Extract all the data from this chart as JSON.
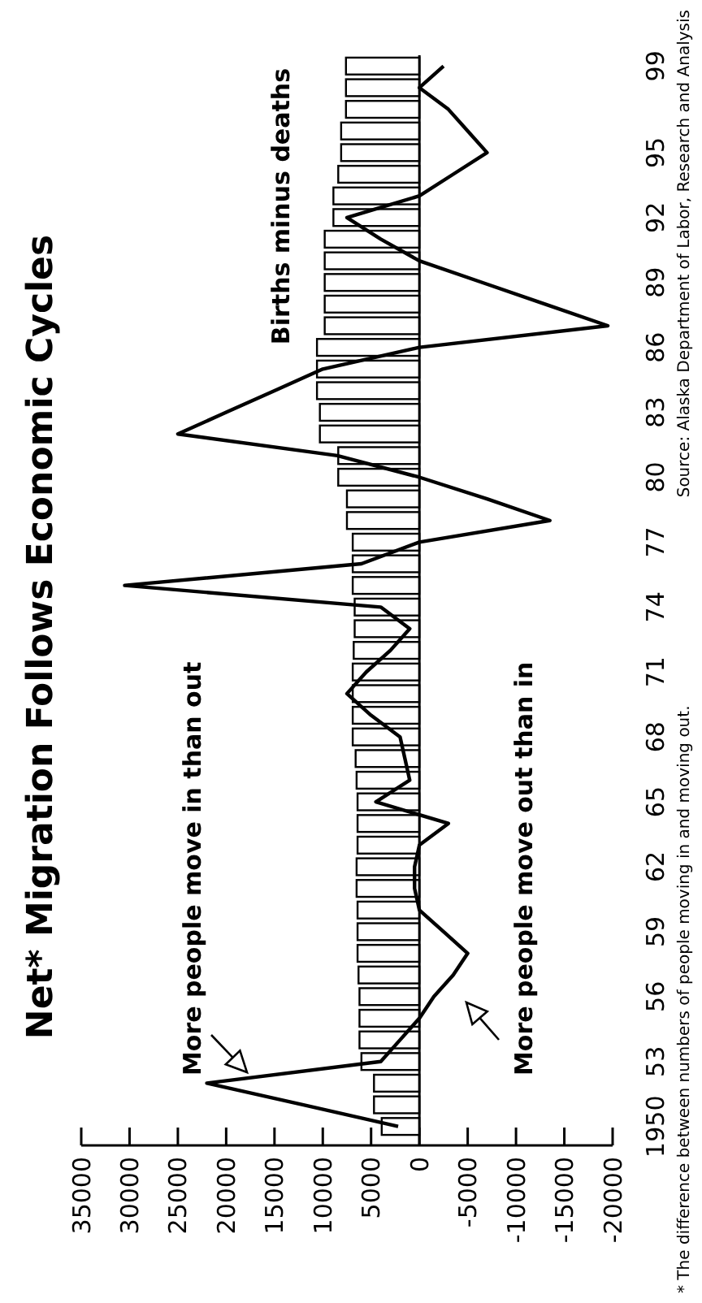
{
  "chart_data": {
    "type": "bar",
    "orientation": "horizontal",
    "title": "Net* Migration Follows Economic Cycles",
    "categories": [
      "99",
      null,
      null,
      null,
      "95",
      null,
      null,
      "92",
      null,
      null,
      "89",
      null,
      null,
      "86",
      null,
      null,
      "83",
      null,
      null,
      "80",
      null,
      null,
      "77",
      null,
      null,
      "74",
      null,
      null,
      "71",
      null,
      null,
      "68",
      null,
      null,
      "65",
      null,
      null,
      "62",
      null,
      null,
      "59",
      null,
      null,
      "56",
      null,
      null,
      "53",
      null,
      null,
      "1950"
    ],
    "xlim": [
      35000,
      -20000
    ],
    "xticks": [
      35000,
      30000,
      25000,
      20000,
      15000,
      10000,
      5000,
      0,
      -5000,
      -10000,
      -15000,
      -20000
    ],
    "series": [
      {
        "name": "Births minus deaths",
        "color": "#ffffff",
        "values": [
          7600,
          7600,
          7600,
          8100,
          8100,
          8400,
          8900,
          8900,
          9800,
          9800,
          9800,
          9800,
          9800,
          10600,
          10600,
          10600,
          10300,
          10300,
          8400,
          8400,
          7500,
          7500,
          6900,
          6900,
          6900,
          6700,
          6700,
          6800,
          6900,
          6900,
          6900,
          6900,
          6600,
          6500,
          6400,
          6400,
          6400,
          6500,
          6500,
          6400,
          6400,
          6400,
          6300,
          6200,
          6200,
          6200,
          6000,
          4700,
          4700,
          3900
        ]
      },
      {
        "type": "line",
        "color": "#000000",
        "values": [
          -2500,
          0,
          -3000,
          -5000,
          -7000,
          -3500,
          0,
          7500,
          4000,
          0,
          -6500,
          -13000,
          -19500,
          0,
          10000,
          15000,
          20000,
          25000,
          8500,
          0,
          -7000,
          -13500,
          0,
          6000,
          30500,
          4000,
          1000,
          3000,
          5500,
          7500,
          5000,
          2000,
          1500,
          1000,
          4500,
          -3000,
          0,
          500,
          500,
          0,
          -2500,
          -5000,
          -3500,
          -1500,
          0,
          2000,
          4000,
          22000,
          12000,
          2200
        ]
      }
    ],
    "annotations": [
      "More people move in than out",
      "More people move out than in",
      "* The difference between numbers of people moving in and moving out.",
      "Source: Alaska Department of Labor, Research and Analysis"
    ],
    "ref_lines": [
      {
        "axis": "x",
        "value": 0
      }
    ],
    "grid": false,
    "marker": "none",
    "line_style": "solid"
  }
}
